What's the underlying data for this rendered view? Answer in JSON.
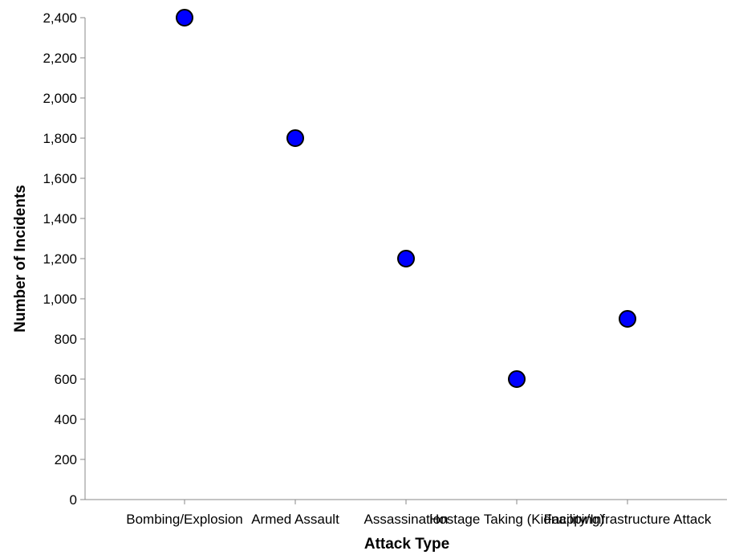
{
  "chart_data": {
    "type": "scatter",
    "xlabel": "Attack Type",
    "ylabel": "Number of Incidents",
    "categories": [
      "Bombing/Explosion",
      "Armed Assault",
      "Assassination",
      "Hostage Taking (Kidnapping)",
      "Facility/Infrastructure Attack"
    ],
    "values": [
      2400,
      1800,
      1200,
      600,
      900
    ],
    "ylim": [
      0,
      2400
    ],
    "yticks": [
      0,
      200,
      400,
      600,
      800,
      1000,
      1200,
      1400,
      1600,
      1800,
      2000,
      2200,
      2400
    ],
    "ytick_labels": [
      "0",
      "200",
      "400",
      "600",
      "800",
      "1,000",
      "1,200",
      "1,400",
      "1,600",
      "1,800",
      "2,000",
      "2,200",
      "2,400"
    ],
    "grid": false,
    "point_color": "#0000ff",
    "point_outline_color": "#000000"
  }
}
